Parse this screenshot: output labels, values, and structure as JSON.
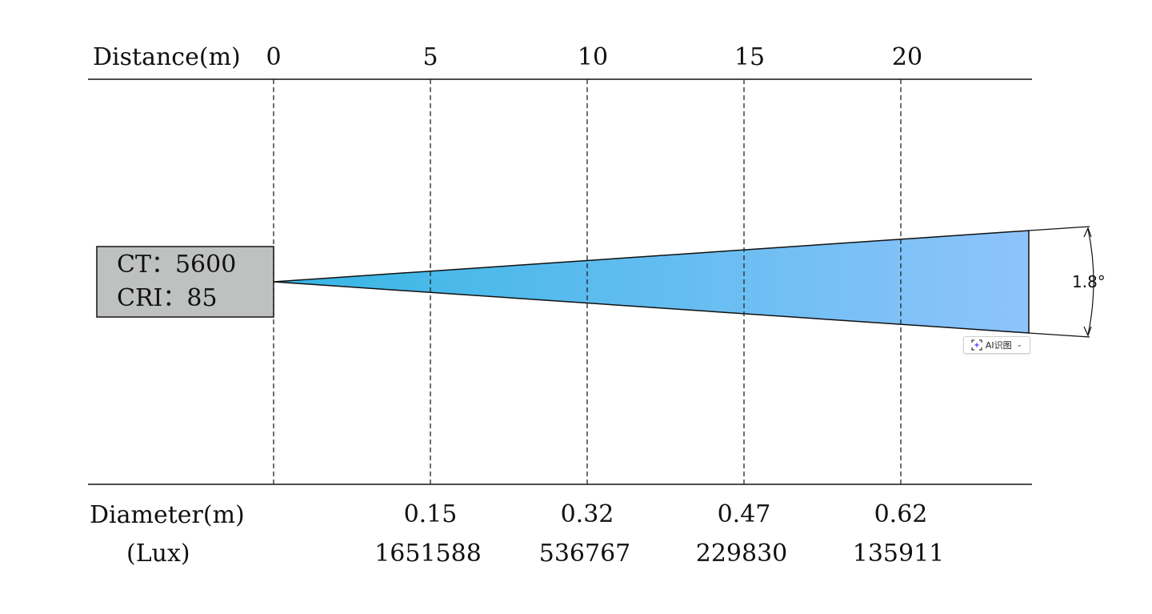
{
  "header": {
    "distance_label": "Distance(m)",
    "distance_ticks": [
      "0",
      "5",
      "10",
      "15",
      "20"
    ]
  },
  "fixture": {
    "ct_line": "CT：5600",
    "cri_line": "CRI：85",
    "box_color": "#bfc1c1"
  },
  "beam": {
    "angle_label": "1.8°",
    "gradient_start": "#36b6e4",
    "gradient_end": "#8ec3fb"
  },
  "footer": {
    "diameter_label": "Diameter(m)",
    "lux_label": "(Lux)",
    "diameters": [
      "0.15",
      "0.32",
      "0.47",
      "0.62"
    ],
    "lux_values": [
      "1651588",
      "536767",
      "229830",
      "135911"
    ]
  },
  "ai_button": {
    "label": "AI识图",
    "icon": "ai-scan-icon",
    "chevron_icon": "chevron-down-icon"
  }
}
